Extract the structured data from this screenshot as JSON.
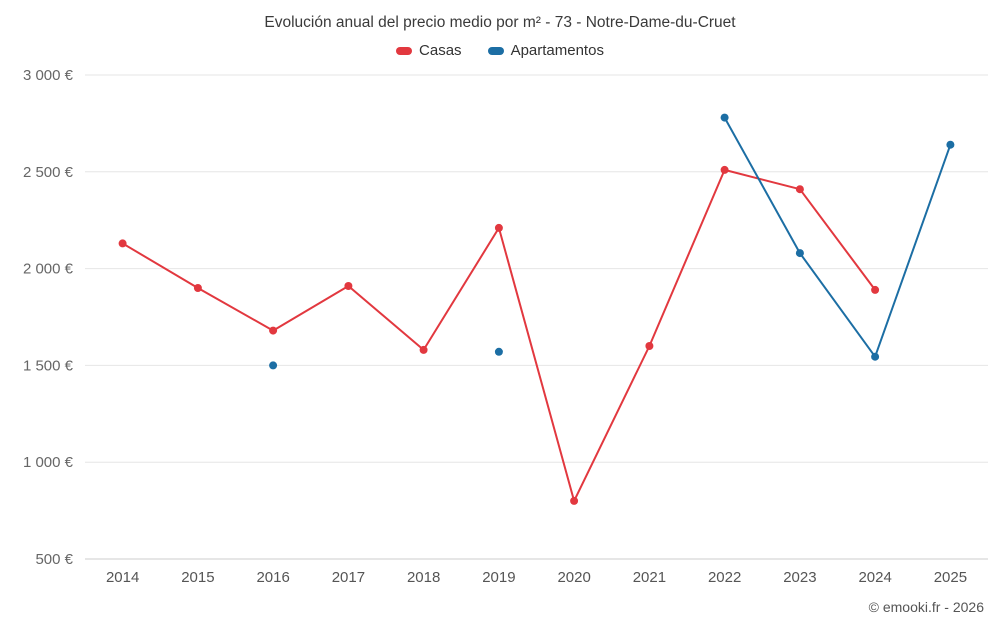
{
  "chart_data": {
    "type": "line",
    "title": "Evolución anual del precio medio por m² - 73 - Notre-Dame-du-Cruet",
    "categories": [
      "2014",
      "2015",
      "2016",
      "2017",
      "2018",
      "2019",
      "2020",
      "2021",
      "2022",
      "2023",
      "2024",
      "2025"
    ],
    "series": [
      {
        "name": "Casas",
        "color": "#e2383f",
        "values": [
          2130,
          1900,
          1680,
          1910,
          1580,
          2210,
          800,
          1600,
          2510,
          2410,
          1890,
          null
        ]
      },
      {
        "name": "Apartamentos",
        "color": "#1c6ea4",
        "values": [
          null,
          null,
          1500,
          null,
          null,
          1570,
          null,
          null,
          2780,
          2080,
          1545,
          2640
        ]
      }
    ],
    "ylim": [
      500,
      3000
    ],
    "ytick_values": [
      500,
      1000,
      1500,
      2000,
      2500,
      3000
    ],
    "ytick_labels": [
      "500 €",
      "1 000 €",
      "1 500 €",
      "2 000 €",
      "2 500 €",
      "3 000 €"
    ],
    "grid": true,
    "legend_position": "top",
    "marker_radius": 4,
    "line_width": 2
  },
  "footer": {
    "copyright": "© emooki.fr - 2026"
  }
}
